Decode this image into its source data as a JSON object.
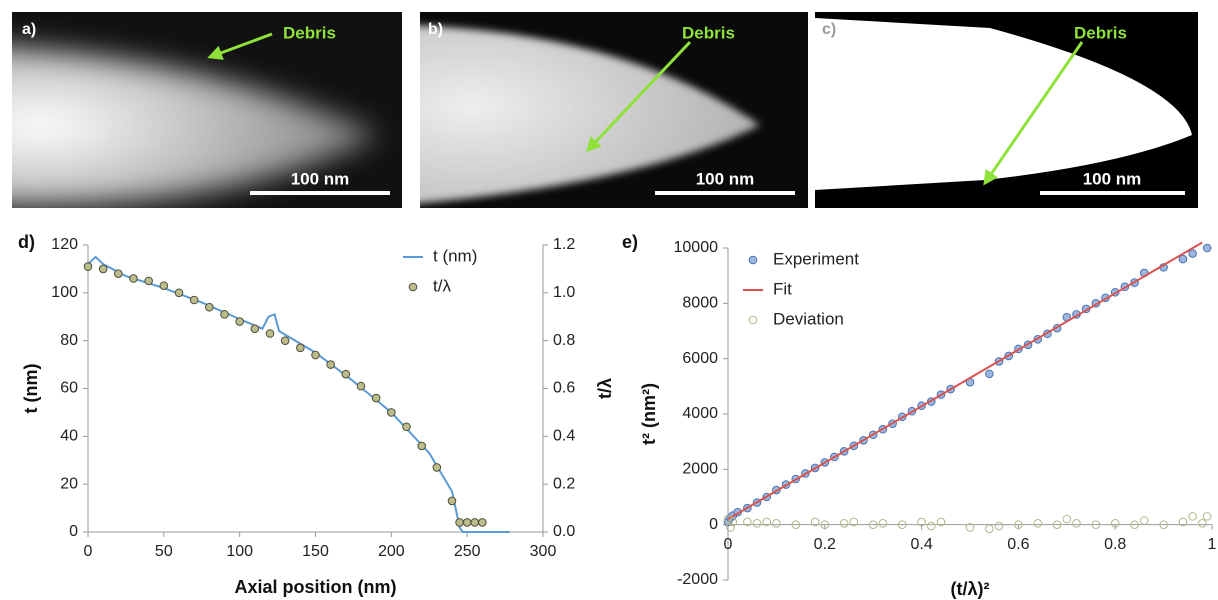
{
  "panels": [
    {
      "label": "a)",
      "annotation": "Debris",
      "scale_bar": "100 nm"
    },
    {
      "label": "b)",
      "annotation": "Debris",
      "scale_bar": "100 nm"
    },
    {
      "label": "c)",
      "annotation": "Debris",
      "scale_bar": "100 nm"
    }
  ],
  "chart_data": [
    {
      "type": "line",
      "label": "d)",
      "xlabel": "Axial position (nm)",
      "ylabel": "t (nm)",
      "y2label": "t/λ",
      "xlim": [
        0,
        300
      ],
      "xticks": [
        0,
        50,
        100,
        150,
        200,
        250,
        300
      ],
      "ylim": [
        0,
        120
      ],
      "yticks": [
        0,
        20,
        40,
        60,
        80,
        100,
        120
      ],
      "y2lim": [
        0,
        1.2
      ],
      "y2ticks": [
        {
          "value": 0,
          "label": "0.0"
        },
        0.2,
        0.4,
        0.6,
        0.8,
        {
          "value": 1,
          "label": "1.0"
        },
        1.2
      ],
      "legend": "upper right",
      "series": [
        {
          "name": "t (nm)",
          "style": "line",
          "color": "#5b9bd5",
          "fill": "none",
          "x": [
            0,
            5,
            10,
            25,
            50,
            75,
            100,
            115,
            119,
            123,
            126,
            150,
            175,
            200,
            225,
            240,
            245,
            247,
            278
          ],
          "values": [
            112,
            115,
            112,
            107,
            102,
            96,
            89,
            85,
            90,
            91,
            84,
            75,
            63,
            50,
            33,
            17,
            2,
            0,
            0
          ]
        },
        {
          "name": "t/λ",
          "style": "marker",
          "axis": "y2",
          "color": "#4d4d3a",
          "fill": "#bcbc8c",
          "x": [
            0,
            10,
            20,
            30,
            40,
            50,
            60,
            70,
            80,
            90,
            100,
            110,
            120,
            130,
            140,
            150,
            160,
            170,
            180,
            190,
            200,
            210,
            220,
            230,
            240,
            245,
            250,
            255,
            260
          ],
          "values": [
            1.11,
            1.1,
            1.08,
            1.06,
            1.05,
            1.03,
            1.0,
            0.97,
            0.94,
            0.91,
            0.88,
            0.85,
            0.83,
            0.8,
            0.77,
            0.74,
            0.7,
            0.66,
            0.61,
            0.56,
            0.5,
            0.44,
            0.36,
            0.27,
            0.13,
            0.04,
            0.04,
            0.04,
            0.04
          ]
        }
      ]
    },
    {
      "type": "scatter",
      "label": "e)",
      "xlabel": "(t/λ)²",
      "ylabel": "t² (nm²)",
      "xlim": [
        0,
        1
      ],
      "xticks": [
        0,
        0.2,
        0.4,
        0.6,
        0.8,
        1
      ],
      "ylim": [
        -2000,
        10000
      ],
      "yticks": [
        -2000,
        0,
        2000,
        4000,
        6000,
        8000,
        10000
      ],
      "legend": "upper left",
      "series": [
        {
          "name": "Experiment",
          "style": "marker",
          "color": "#4a72b0",
          "fill": "#9bb7e0",
          "x": [
            0,
            0.005,
            0.01,
            0.02,
            0.04,
            0.06,
            0.08,
            0.1,
            0.12,
            0.14,
            0.16,
            0.18,
            0.2,
            0.22,
            0.24,
            0.26,
            0.28,
            0.3,
            0.32,
            0.34,
            0.36,
            0.38,
            0.4,
            0.42,
            0.44,
            0.46,
            0.5,
            0.54,
            0.56,
            0.58,
            0.6,
            0.62,
            0.64,
            0.66,
            0.68,
            0.7,
            0.72,
            0.74,
            0.76,
            0.78,
            0.8,
            0.82,
            0.84,
            0.86,
            0.9,
            0.94,
            0.96,
            0.99
          ],
          "values": [
            100,
            250,
            330,
            450,
            600,
            800,
            1000,
            1250,
            1450,
            1650,
            1850,
            2050,
            2250,
            2450,
            2650,
            2850,
            3050,
            3250,
            3450,
            3650,
            3900,
            4100,
            4300,
            4450,
            4700,
            4900,
            5150,
            5450,
            5900,
            6100,
            6350,
            6500,
            6700,
            6900,
            7100,
            7500,
            7600,
            7800,
            8000,
            8200,
            8400,
            8600,
            8750,
            9100,
            9300,
            9600,
            9800,
            10000
          ]
        },
        {
          "name": "Fit",
          "style": "line",
          "color": "#d9534f",
          "fill": "none",
          "x": [
            0,
            0.98
          ],
          "values": [
            200,
            10200
          ]
        },
        {
          "name": "Deviation",
          "style": "marker",
          "color": "#b5b48a",
          "fill": "none",
          "x": [
            0,
            0.005,
            0.01,
            0.04,
            0.06,
            0.08,
            0.1,
            0.14,
            0.18,
            0.2,
            0.24,
            0.26,
            0.3,
            0.32,
            0.36,
            0.4,
            0.42,
            0.44,
            0.5,
            0.54,
            0.56,
            0.6,
            0.64,
            0.68,
            0.7,
            0.72,
            0.76,
            0.8,
            0.84,
            0.86,
            0.9,
            0.94,
            0.96,
            0.98,
            0.99
          ],
          "values": [
            200,
            -100,
            100,
            100,
            50,
            100,
            50,
            0,
            100,
            0,
            50,
            100,
            0,
            50,
            0,
            100,
            -50,
            100,
            -100,
            -150,
            -50,
            0,
            50,
            0,
            200,
            50,
            0,
            50,
            0,
            150,
            0,
            100,
            300,
            50,
            300
          ]
        }
      ]
    }
  ]
}
